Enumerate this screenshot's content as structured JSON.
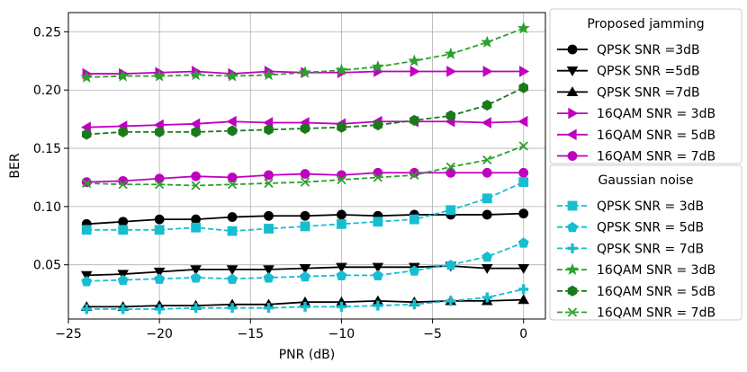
{
  "chart_data": {
    "type": "line",
    "xlabel": "PNR (dB)",
    "ylabel": "BER",
    "xlim": [
      -25,
      1.2
    ],
    "ylim": [
      0.0035,
      0.2665
    ],
    "x_ticks": [
      -25,
      -20,
      -15,
      -10,
      -5,
      0
    ],
    "x_tick_labels": [
      "−25",
      "−20",
      "−15",
      "−10",
      "−5",
      "0"
    ],
    "y_ticks": [
      0.05,
      0.1,
      0.15,
      0.2,
      0.25
    ],
    "y_tick_labels": [
      "0.05",
      "0.10",
      "0.15",
      "0.20",
      "0.25"
    ],
    "grid": true,
    "x": [
      -24,
      -22,
      -20,
      -18,
      -16,
      -14,
      -12,
      -10,
      -8,
      -6,
      -4,
      -2,
      0
    ],
    "legends": [
      {
        "title": "Proposed jamming",
        "placement": "top-right outside",
        "entries": [
          {
            "label": "QPSK SNR =3dB",
            "series": 0
          },
          {
            "label": "QPSK SNR =5dB",
            "series": 1
          },
          {
            "label": "QPSK SNR =7dB",
            "series": 2
          },
          {
            "label": "16QAM SNR = 3dB",
            "series": 3
          },
          {
            "label": "16QAM SNR = 5dB",
            "series": 4
          },
          {
            "label": "16QAM SNR = 7dB",
            "series": 5
          }
        ]
      },
      {
        "title": "Gaussian noise",
        "placement": "bottom-right outside",
        "entries": [
          {
            "label": "QPSK SNR = 3dB",
            "series": 6
          },
          {
            "label": "QPSK SNR = 5dB",
            "series": 7
          },
          {
            "label": "QPSK SNR = 7dB",
            "series": 8
          },
          {
            "label": "16QAM SNR = 3dB",
            "series": 9
          },
          {
            "label": "16QAM SNR = 5dB",
            "series": 10
          },
          {
            "label": "16QAM SNR = 7dB",
            "series": 11
          }
        ]
      }
    ],
    "series": [
      {
        "name": "QPSK SNR =3dB",
        "color": "#000000",
        "marker": "circle",
        "dash": false,
        "values": [
          0.085,
          0.087,
          0.089,
          0.089,
          0.091,
          0.092,
          0.092,
          0.093,
          0.092,
          0.093,
          0.093,
          0.093,
          0.094
        ]
      },
      {
        "name": "QPSK SNR =5dB",
        "color": "#000000",
        "marker": "triangle-down",
        "dash": false,
        "values": [
          0.041,
          0.042,
          0.044,
          0.046,
          0.046,
          0.046,
          0.047,
          0.048,
          0.048,
          0.048,
          0.049,
          0.047,
          0.047
        ]
      },
      {
        "name": "QPSK SNR =7dB",
        "color": "#000000",
        "marker": "triangle-up",
        "dash": false,
        "values": [
          0.014,
          0.014,
          0.015,
          0.015,
          0.016,
          0.016,
          0.018,
          0.018,
          0.019,
          0.018,
          0.019,
          0.019,
          0.02
        ]
      },
      {
        "name": "16QAM SNR = 3dB",
        "color": "#bf00bf",
        "marker": "triangle-right",
        "dash": false,
        "values": [
          0.214,
          0.214,
          0.215,
          0.216,
          0.214,
          0.216,
          0.215,
          0.215,
          0.216,
          0.216,
          0.216,
          0.216,
          0.216
        ]
      },
      {
        "name": "16QAM SNR = 5dB",
        "color": "#bf00bf",
        "marker": "triangle-left",
        "dash": false,
        "values": [
          0.168,
          0.169,
          0.17,
          0.171,
          0.173,
          0.172,
          0.172,
          0.171,
          0.173,
          0.173,
          0.173,
          0.172,
          0.173
        ]
      },
      {
        "name": "16QAM SNR = 7dB",
        "color": "#bf00bf",
        "marker": "circle",
        "dash": false,
        "values": [
          0.121,
          0.122,
          0.124,
          0.126,
          0.125,
          0.127,
          0.128,
          0.127,
          0.129,
          0.129,
          0.129,
          0.129,
          0.129
        ]
      },
      {
        "name": "QPSK SNR = 3dB",
        "color": "#17becf",
        "marker": "square",
        "dash": true,
        "values": [
          0.08,
          0.08,
          0.08,
          0.082,
          0.079,
          0.081,
          0.083,
          0.085,
          0.087,
          0.089,
          0.097,
          0.107,
          0.121
        ]
      },
      {
        "name": "QPSK SNR = 5dB",
        "color": "#17becf",
        "marker": "pentagon",
        "dash": true,
        "values": [
          0.036,
          0.037,
          0.038,
          0.039,
          0.038,
          0.039,
          0.04,
          0.041,
          0.041,
          0.045,
          0.05,
          0.057,
          0.069
        ]
      },
      {
        "name": "QPSK SNR = 7dB",
        "color": "#17becf",
        "marker": "plus",
        "dash": true,
        "values": [
          0.012,
          0.012,
          0.012,
          0.013,
          0.013,
          0.013,
          0.014,
          0.014,
          0.015,
          0.016,
          0.019,
          0.022,
          0.029
        ]
      },
      {
        "name": "16QAM SNR = 3dB",
        "color": "#2ca02c",
        "marker": "star",
        "dash": true,
        "values": [
          0.211,
          0.212,
          0.212,
          0.213,
          0.212,
          0.213,
          0.215,
          0.217,
          0.22,
          0.225,
          0.231,
          0.241,
          0.253
        ]
      },
      {
        "name": "16QAM SNR = 5dB",
        "color": "#1a7a1a",
        "marker": "hexagon",
        "dash": true,
        "values": [
          0.162,
          0.164,
          0.164,
          0.164,
          0.165,
          0.166,
          0.167,
          0.168,
          0.17,
          0.174,
          0.178,
          0.187,
          0.202
        ]
      },
      {
        "name": "16QAM SNR = 7dB",
        "color": "#2ca02c",
        "marker": "x",
        "dash": true,
        "values": [
          0.12,
          0.119,
          0.119,
          0.118,
          0.119,
          0.12,
          0.121,
          0.123,
          0.125,
          0.127,
          0.134,
          0.14,
          0.152
        ]
      }
    ]
  }
}
